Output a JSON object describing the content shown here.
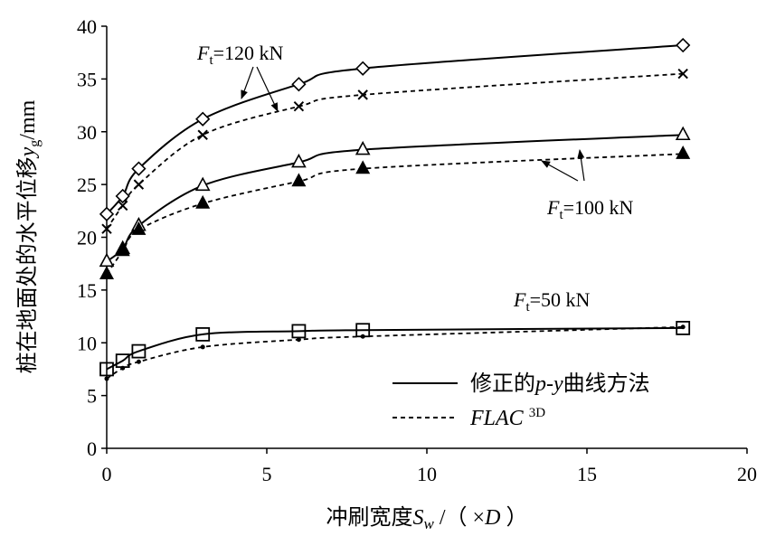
{
  "chart_data": {
    "type": "line",
    "xlabel": "冲刷宽度Sw /（×D）",
    "ylabel": "桩在地面处的水平位移yg/mm",
    "xlim": [
      0,
      20
    ],
    "ylim": [
      0,
      40
    ],
    "x_ticks": [
      "0",
      "5",
      "10",
      "15",
      "20"
    ],
    "y_ticks": [
      "0",
      "5",
      "10",
      "15",
      "20",
      "25",
      "30",
      "35",
      "40"
    ],
    "grid": false,
    "legend": {
      "placement": "bottom-right",
      "entries": [
        {
          "label": "修正的p-y曲线方法",
          "style": "solid"
        },
        {
          "label": "FLAC 3D",
          "style": "dashed"
        }
      ]
    },
    "annotations": [
      "Ft=120 kN",
      "Ft=100 kN",
      "Ft=50 kN"
    ],
    "x": [
      0,
      0.5,
      1,
      3,
      6,
      8,
      18
    ],
    "series": [
      {
        "group": "Ft=120 kN",
        "method": "修正的p-y曲线方法",
        "marker": "diamond-open",
        "line": "solid",
        "values": [
          22.2,
          23.9,
          26.5,
          31.2,
          34.5,
          36.0,
          38.2
        ]
      },
      {
        "group": "Ft=120 kN",
        "method": "FLAC 3D",
        "marker": "x",
        "line": "dashed",
        "values": [
          20.8,
          23.0,
          25.0,
          29.7,
          32.4,
          33.5,
          35.5
        ]
      },
      {
        "group": "Ft=100 kN",
        "method": "修正的p-y曲线方法",
        "marker": "triangle-open",
        "line": "solid",
        "values": [
          17.7,
          18.9,
          21.1,
          24.9,
          27.1,
          28.3,
          29.7
        ]
      },
      {
        "group": "Ft=100 kN",
        "method": "FLAC 3D",
        "marker": "triangle-filled",
        "line": "dashed",
        "values": [
          16.5,
          18.7,
          20.7,
          23.2,
          25.3,
          26.5,
          27.9
        ]
      },
      {
        "group": "Ft=50 kN",
        "method": "修正的p-y曲线方法",
        "marker": "square-open",
        "line": "solid",
        "values": [
          7.5,
          8.3,
          9.2,
          10.8,
          11.1,
          11.2,
          11.4
        ]
      },
      {
        "group": "Ft=50 kN",
        "method": "FLAC 3D",
        "marker": "dot",
        "line": "dashed",
        "values": [
          6.6,
          7.6,
          8.2,
          9.6,
          10.3,
          10.6,
          11.5
        ]
      }
    ]
  }
}
